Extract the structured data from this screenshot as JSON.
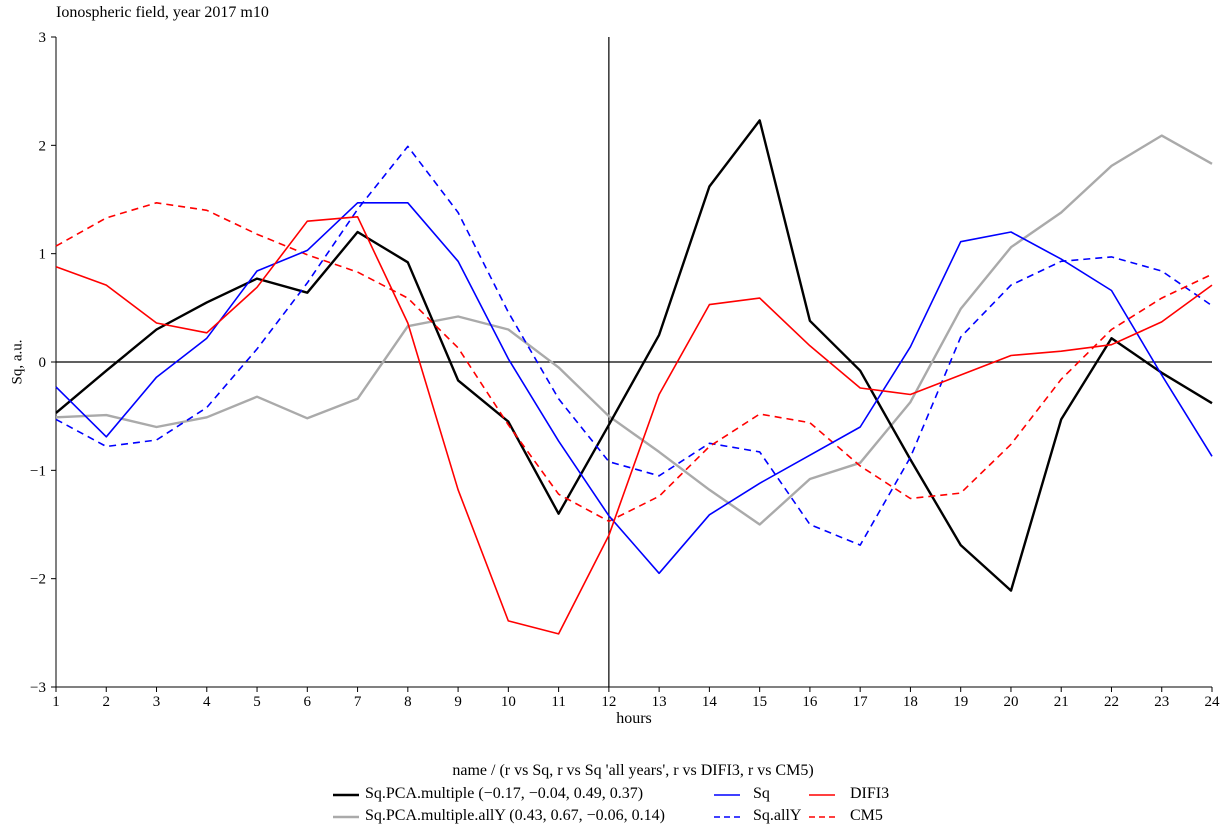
{
  "chart_data": {
    "type": "line",
    "title": "Ionospheric field, year 2017 m10",
    "xlabel": "hours",
    "ylabel": "Sq, a.u.",
    "xlim": [
      1,
      24
    ],
    "ylim": [
      -3,
      3
    ],
    "x_ticks": [
      1,
      2,
      3,
      4,
      5,
      6,
      7,
      8,
      9,
      10,
      11,
      12,
      13,
      14,
      15,
      16,
      17,
      18,
      19,
      20,
      21,
      22,
      23,
      24
    ],
    "y_ticks": [
      -3,
      -2,
      -1,
      0,
      1,
      2,
      3
    ],
    "y_tick_labels": [
      "−3",
      "−2",
      "−1",
      "0",
      "1",
      "2",
      "3"
    ],
    "x": [
      1,
      2,
      3,
      4,
      5,
      6,
      7,
      8,
      9,
      10,
      11,
      12,
      13,
      14,
      15,
      16,
      17,
      18,
      19,
      20,
      21,
      22,
      23,
      24
    ],
    "reference_lines": {
      "horizontal_at": 0,
      "vertical_at": 12
    },
    "legend_title": "name / (r vs Sq, r vs Sq 'all years', r vs DIFI3, r vs CM5)",
    "legend_placement": "bottom-center",
    "series": [
      {
        "name": "Sq.PCA.multiple (−0.17, −0.04, 0.49, 0.37)",
        "color": "#000000",
        "dash": "solid",
        "width": 2.4,
        "values": [
          -0.47,
          -0.08,
          0.3,
          0.55,
          0.77,
          0.64,
          1.2,
          0.92,
          -0.17,
          -0.55,
          -1.4,
          -0.58,
          0.25,
          1.62,
          2.23,
          0.38,
          -0.08,
          -0.9,
          -1.69,
          -2.11,
          -0.53,
          0.22,
          -0.1,
          -0.38
        ]
      },
      {
        "name": "Sq",
        "color": "#0000ff",
        "dash": "solid",
        "width": 1.6,
        "values": [
          -0.23,
          -0.69,
          -0.14,
          0.22,
          0.84,
          1.03,
          1.47,
          1.47,
          0.93,
          0.03,
          -0.73,
          -1.42,
          -1.95,
          -1.41,
          -1.12,
          -0.86,
          -0.6,
          0.14,
          1.11,
          1.2,
          0.95,
          0.66,
          -0.12,
          -0.87
        ]
      },
      {
        "name": "DIFI3",
        "color": "#ff0000",
        "dash": "solid",
        "width": 1.6,
        "values": [
          0.88,
          0.71,
          0.36,
          0.27,
          0.69,
          1.3,
          1.34,
          0.36,
          -1.18,
          -2.39,
          -2.51,
          -1.6,
          -0.3,
          0.53,
          0.59,
          0.15,
          -0.24,
          -0.3,
          -0.12,
          0.06,
          0.1,
          0.16,
          0.37,
          0.71
        ]
      },
      {
        "name": "Sq.PCA.multiple.allY (0.43, 0.67, −0.06, 0.14)",
        "color": "#aaaaaa",
        "dash": "solid",
        "width": 2.4,
        "values": [
          -0.51,
          -0.49,
          -0.6,
          -0.51,
          -0.32,
          -0.52,
          -0.34,
          0.33,
          0.42,
          0.3,
          -0.05,
          -0.5,
          -0.83,
          -1.18,
          -1.5,
          -1.08,
          -0.93,
          -0.37,
          0.49,
          1.06,
          1.38,
          1.81,
          2.09,
          1.83
        ]
      },
      {
        "name": "Sq.allY",
        "color": "#0000ff",
        "dash": "dashed",
        "width": 1.6,
        "values": [
          -0.53,
          -0.78,
          -0.72,
          -0.42,
          0.12,
          0.73,
          1.41,
          1.99,
          1.38,
          0.46,
          -0.34,
          -0.92,
          -1.05,
          -0.75,
          -0.83,
          -1.5,
          -1.69,
          -0.88,
          0.23,
          0.71,
          0.93,
          0.97,
          0.84,
          0.52
        ]
      },
      {
        "name": "CM5",
        "color": "#ff0000",
        "dash": "dashed",
        "width": 1.6,
        "values": [
          1.07,
          1.33,
          1.47,
          1.4,
          1.18,
          0.99,
          0.83,
          0.59,
          0.13,
          -0.58,
          -1.22,
          -1.47,
          -1.24,
          -0.78,
          -0.48,
          -0.56,
          -0.96,
          -1.26,
          -1.21,
          -0.76,
          -0.16,
          0.3,
          0.59,
          0.81
        ]
      }
    ]
  }
}
